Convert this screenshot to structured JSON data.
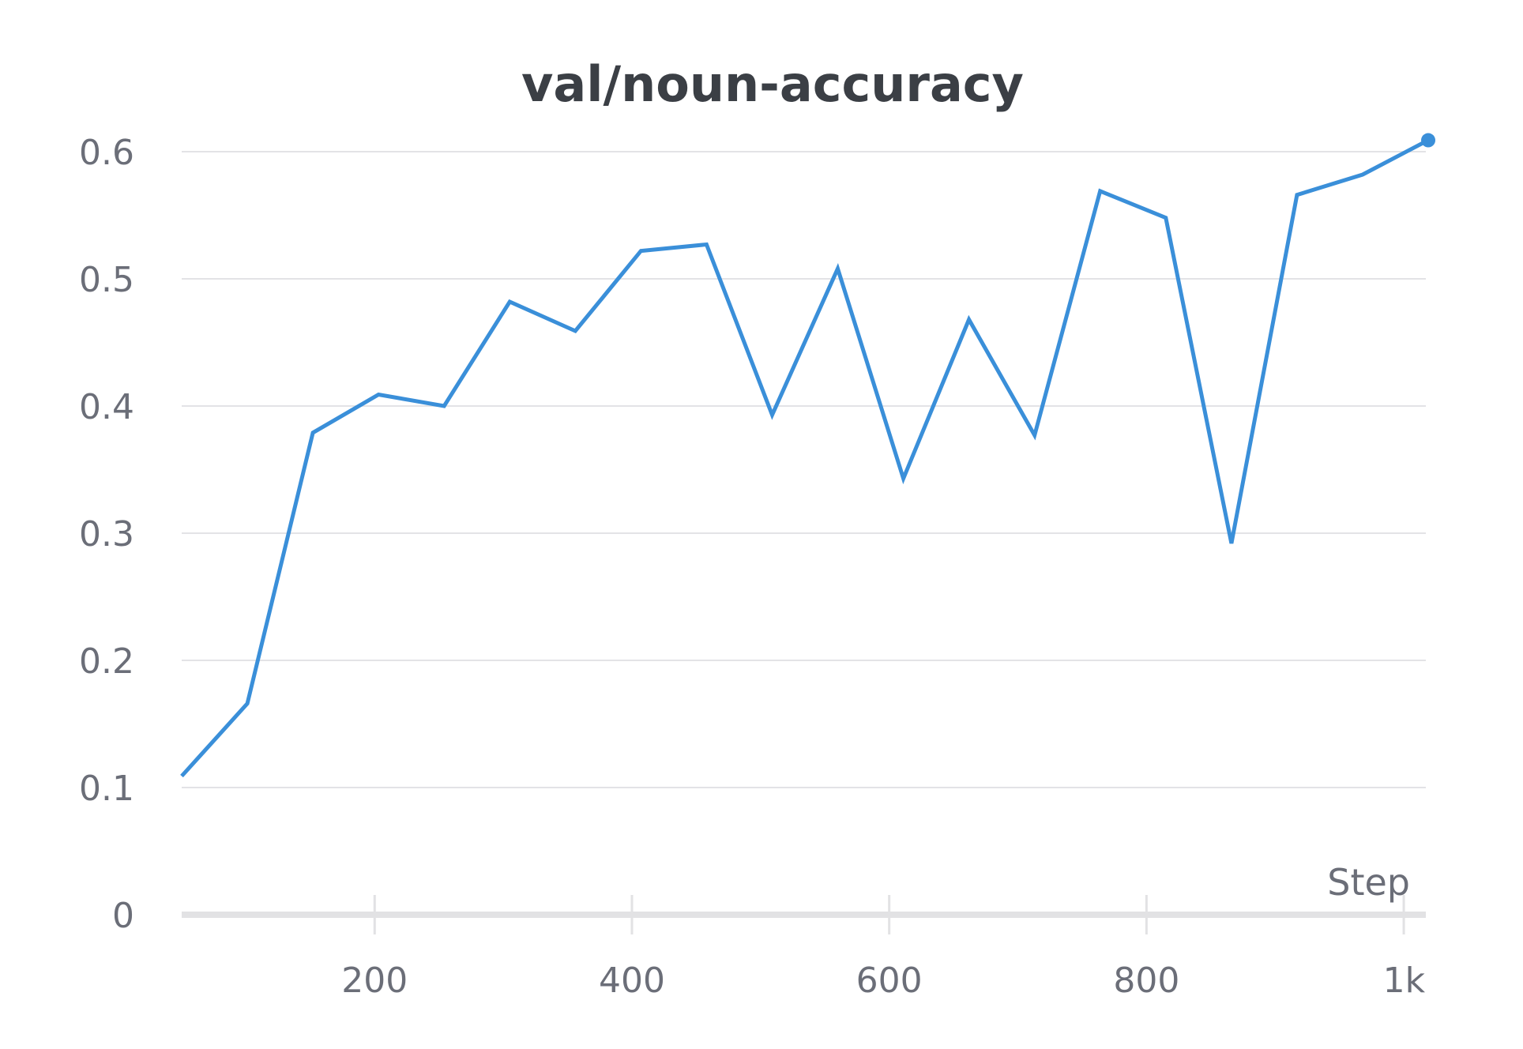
{
  "chart_data": {
    "type": "line",
    "title": "val/noun-accuracy",
    "xlabel": "Step",
    "ylabel": "",
    "xlim": [
      50,
      1020
    ],
    "ylim": [
      0,
      0.6
    ],
    "x_ticks": [
      200,
      400,
      600,
      800,
      1000
    ],
    "x_tick_labels": [
      "200",
      "400",
      "600",
      "800",
      "1k"
    ],
    "y_ticks": [
      0,
      0.1,
      0.2,
      0.3,
      0.4,
      0.5,
      0.6
    ],
    "y_tick_labels": [
      "0",
      "0.1",
      "0.2",
      "0.3",
      "0.4",
      "0.5",
      "0.6"
    ],
    "grid": true,
    "legend": "none",
    "series": [
      {
        "color": "#3a8fd9",
        "x": [
          50,
          101,
          152,
          203,
          254,
          305,
          356,
          407,
          458,
          509,
          560,
          611,
          662,
          713,
          764,
          815,
          866,
          917,
          968,
          1019
        ],
        "y": [
          0.109,
          0.166,
          0.379,
          0.409,
          0.4,
          0.482,
          0.459,
          0.522,
          0.527,
          0.393,
          0.508,
          0.343,
          0.468,
          0.377,
          0.569,
          0.548,
          0.292,
          0.566,
          0.582,
          0.609
        ]
      }
    ]
  }
}
